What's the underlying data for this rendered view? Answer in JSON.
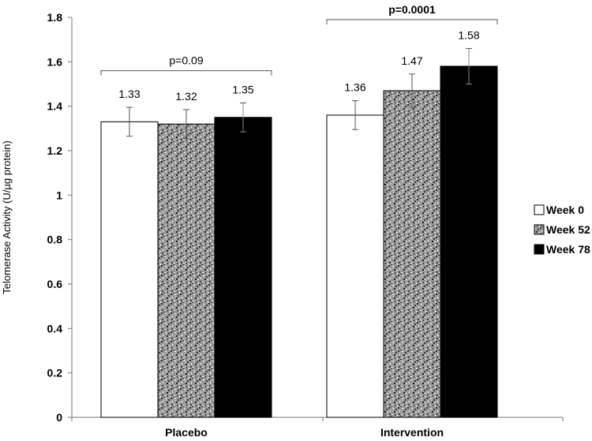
{
  "chart_data": {
    "type": "bar",
    "ylabel": "Telomerase Activity (U/µg protein)",
    "xlabel": "",
    "ylim": [
      0,
      1.8
    ],
    "yticks": [
      "0",
      "0.2",
      "0.4",
      "0.6",
      "0.8",
      "1",
      "1.2",
      "1.4",
      "1.6",
      "1.8"
    ],
    "categories": [
      "Placebo",
      "Intervention"
    ],
    "series": [
      {
        "name": "Week 0",
        "values": [
          1.33,
          1.36
        ],
        "errors": [
          0.065,
          0.065
        ],
        "labels": [
          "1.33",
          "1.36"
        ],
        "fill": "#ffffff",
        "pattern": "none"
      },
      {
        "name": "Week 52",
        "values": [
          1.32,
          1.47
        ],
        "errors": [
          0.065,
          0.075
        ],
        "labels": [
          "1.32",
          "1.47"
        ],
        "fill": "#9a9a9a",
        "pattern": "speckle"
      },
      {
        "name": "Week 78",
        "values": [
          1.35,
          1.58
        ],
        "errors": [
          0.065,
          0.08
        ],
        "labels": [
          "1.35",
          "1.58"
        ],
        "fill": "#000000",
        "pattern": "none"
      }
    ],
    "annotations": [
      {
        "category": "Placebo",
        "text": "p=0.09",
        "bracket_level": 1.56,
        "bold": false
      },
      {
        "category": "Intervention",
        "text": "p=0.0001",
        "bracket_level": 1.79,
        "bold": true
      }
    ],
    "legend_position": "right",
    "grid": false
  }
}
